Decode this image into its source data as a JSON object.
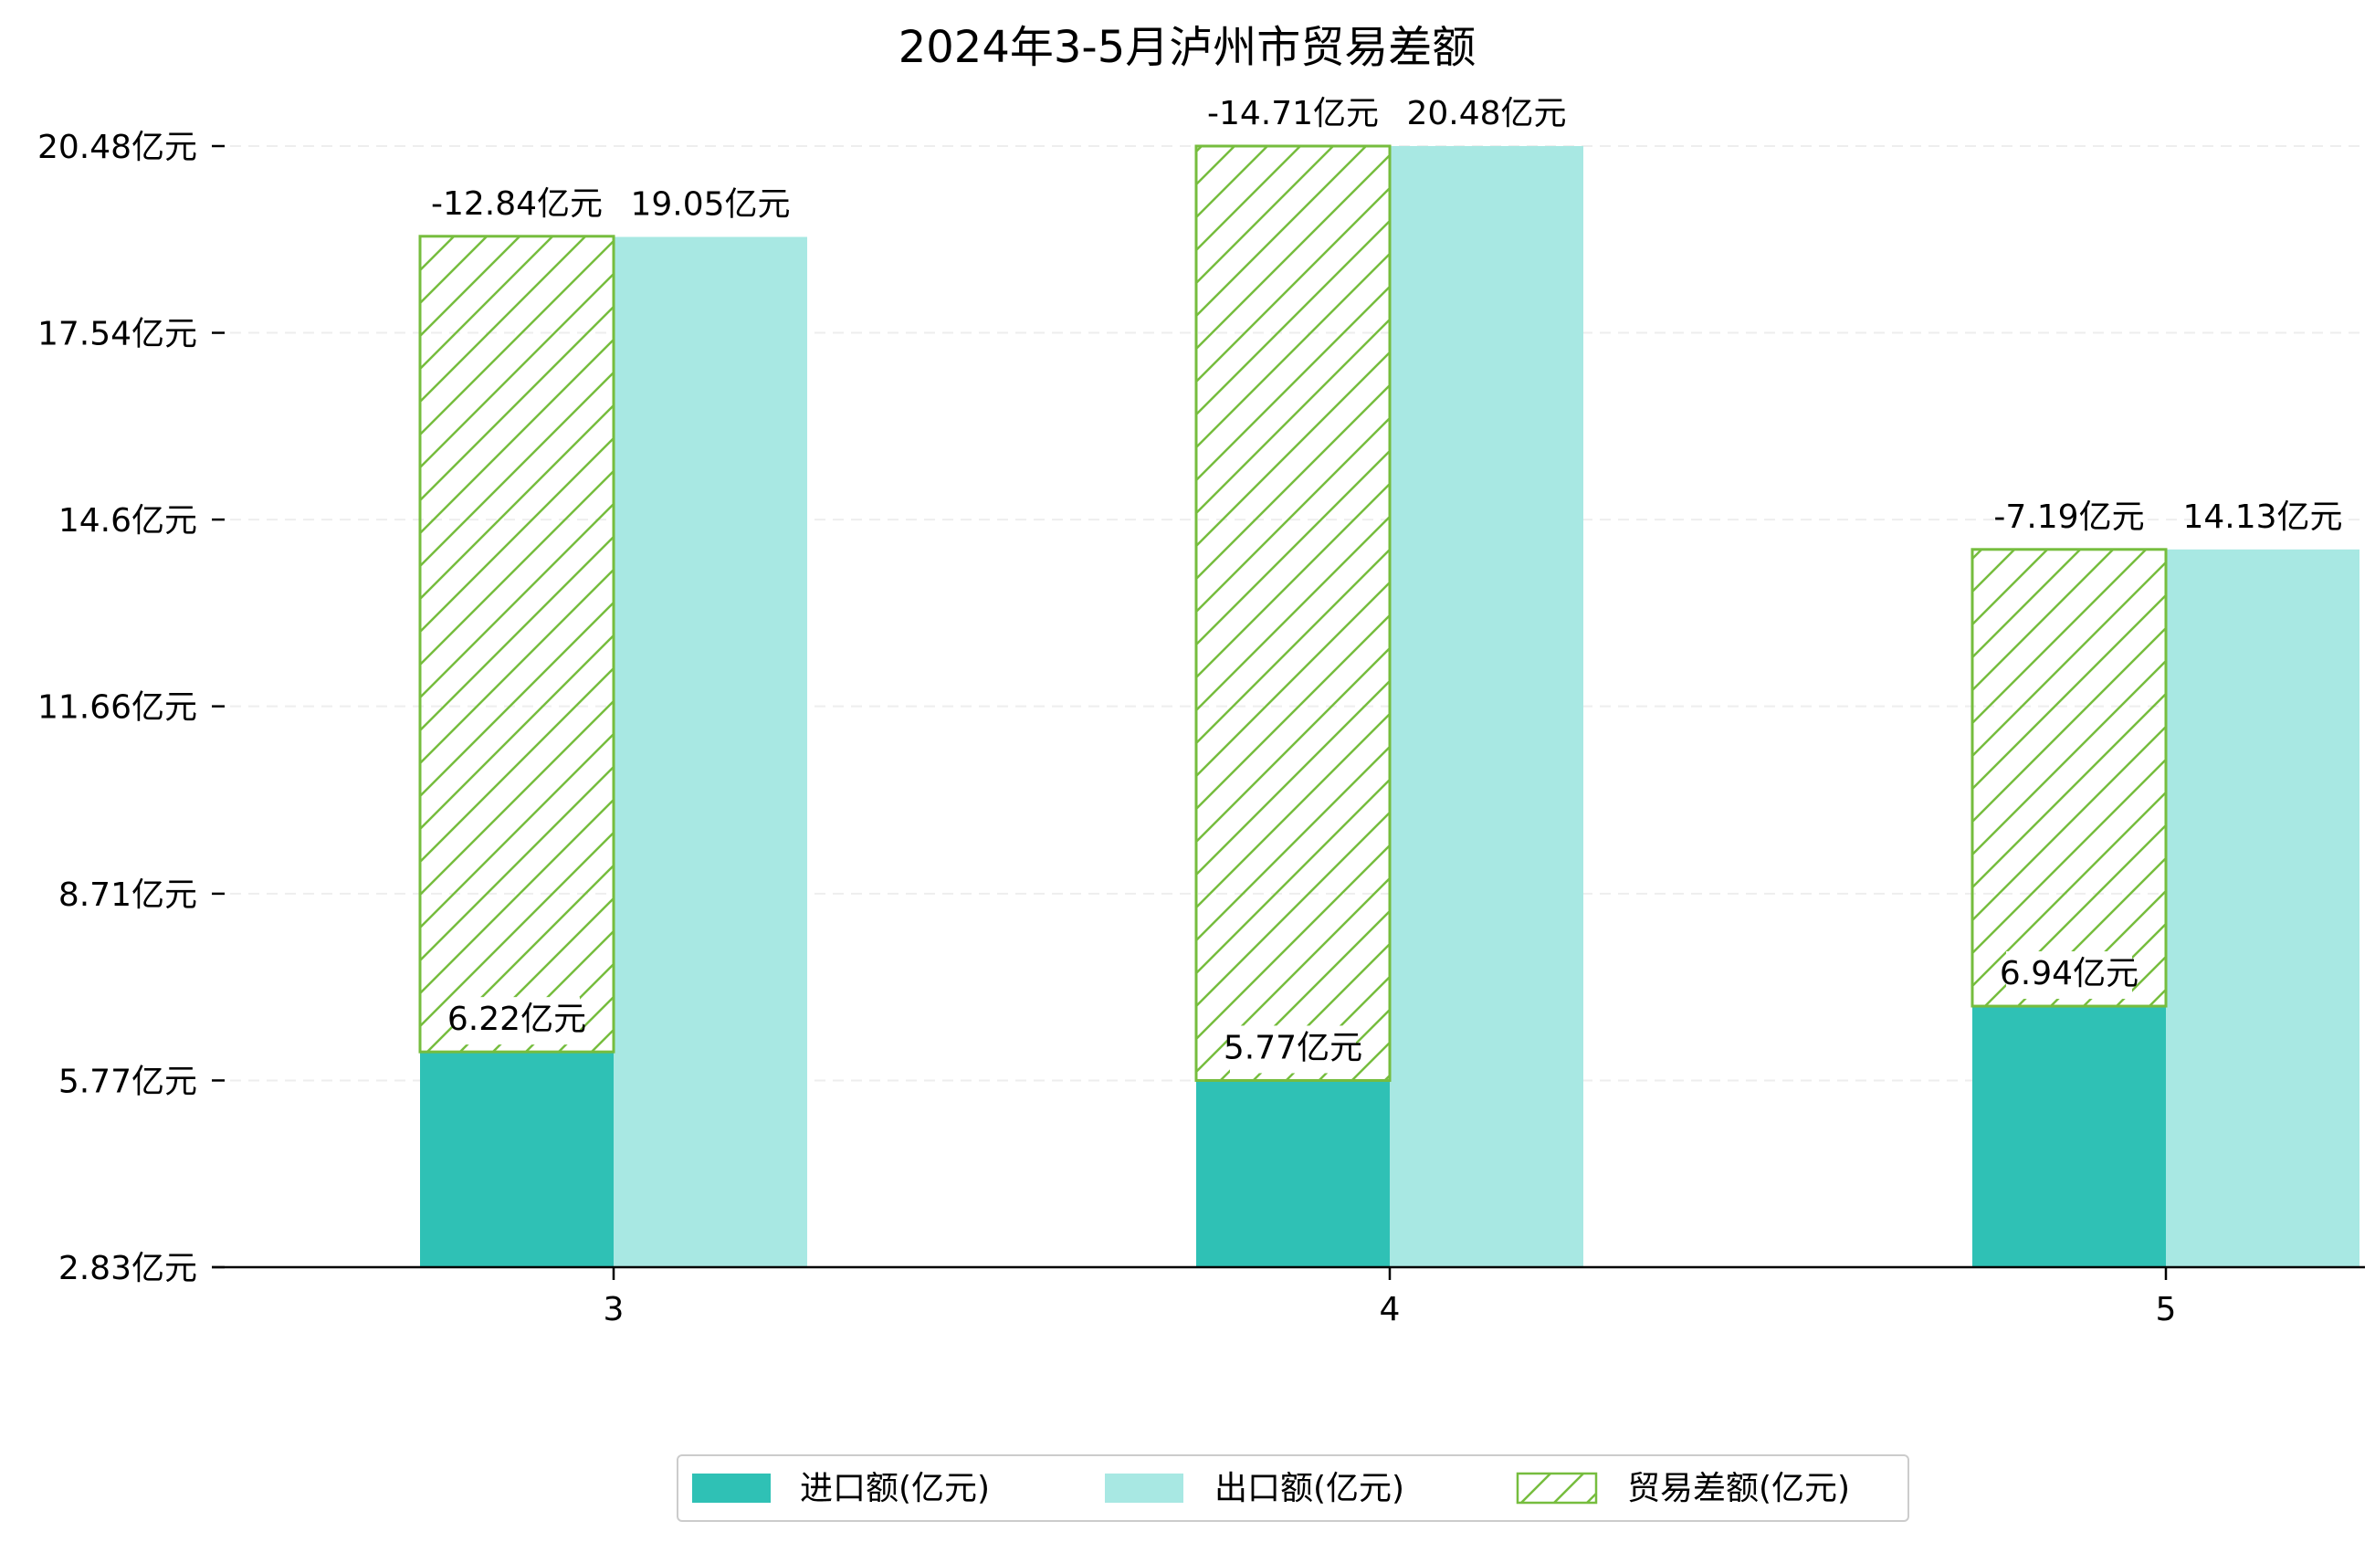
{
  "chart_data": {
    "type": "bar",
    "title": "2024年3-5月泸州市贸易差额",
    "xlabel": "",
    "ylabel": "",
    "categories": [
      "3",
      "4",
      "5"
    ],
    "series": [
      {
        "name": "进口额(亿元)",
        "values": [
          6.22,
          5.77,
          6.94
        ],
        "labels": [
          "6.22亿元",
          "5.77亿元",
          "6.94亿元"
        ]
      },
      {
        "name": "出口额(亿元)",
        "values": [
          19.05,
          20.48,
          14.13
        ],
        "labels": [
          "19.05亿元",
          "20.48亿元",
          "14.13亿元"
        ]
      },
      {
        "name": "贸易差额(亿元)",
        "values": [
          -12.84,
          -14.71,
          -7.19
        ],
        "labels": [
          "-12.84亿元",
          "-14.71亿元",
          "-7.19亿元"
        ]
      }
    ],
    "ylim": [
      2.83,
      20.48
    ],
    "yticks": [
      2.83,
      5.77,
      8.71,
      11.66,
      14.6,
      17.54,
      20.48
    ],
    "ytick_labels": [
      "2.83亿元",
      "5.77亿元",
      "8.71亿元",
      "11.66亿元",
      "14.6亿元",
      "17.54亿元",
      "20.48亿元"
    ],
    "grid": "horizontal dashed",
    "legend_position": "bottom-center",
    "colors": {
      "import": "#2fc1b5",
      "export": "#a8e8e3",
      "balance_stroke": "#76bd3e"
    }
  }
}
